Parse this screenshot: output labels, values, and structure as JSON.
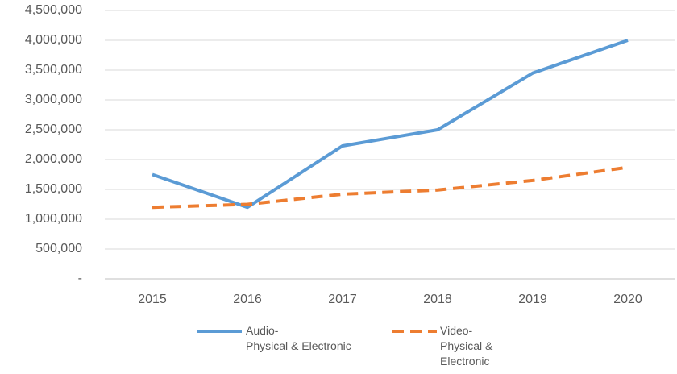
{
  "chart_data": {
    "type": "line",
    "categories": [
      "2015",
      "2016",
      "2017",
      "2018",
      "2019",
      "2020"
    ],
    "series": [
      {
        "name": "Audio-\nPhysical & Electronic",
        "color": "#5b9bd5",
        "line_style": "solid",
        "values": [
          1750000,
          1200000,
          2230000,
          2500000,
          3450000,
          4000000
        ]
      },
      {
        "name": "Video-\nPhysical &\nElectronic",
        "color": "#ed7d31",
        "line_style": "dashed",
        "values": [
          1200000,
          1250000,
          1420000,
          1490000,
          1650000,
          1870000
        ]
      }
    ],
    "ylim": [
      0,
      4500000
    ],
    "yticks": [
      {
        "value": 0,
        "label": "-"
      },
      {
        "value": 500000,
        "label": "500,000"
      },
      {
        "value": 1000000,
        "label": "1,000,000"
      },
      {
        "value": 1500000,
        "label": "1,500,000"
      },
      {
        "value": 2000000,
        "label": "2,000,000"
      },
      {
        "value": 2500000,
        "label": "2,500,000"
      },
      {
        "value": 3000000,
        "label": "3,000,000"
      },
      {
        "value": 3500000,
        "label": "3,500,000"
      },
      {
        "value": 4000000,
        "label": "4,000,000"
      },
      {
        "value": 4500000,
        "label": "4,500,000"
      }
    ],
    "grid": true,
    "legend": "bottom"
  }
}
